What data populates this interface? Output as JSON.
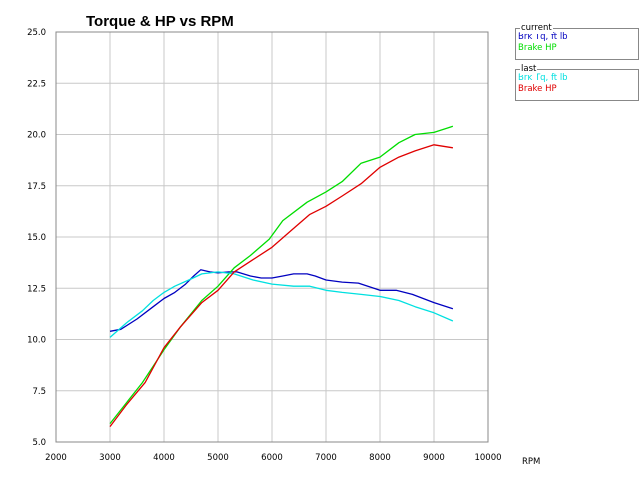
{
  "chart_data": {
    "type": "line",
    "title": "Torque & HP vs RPM",
    "xlabel": "RPM",
    "ylabel": "",
    "xlim": [
      2000,
      10000
    ],
    "ylim": [
      5.0,
      25.0
    ],
    "x_ticks": [
      "2000",
      "3000",
      "4000",
      "5000",
      "6000",
      "7000",
      "8000",
      "9000",
      "10000"
    ],
    "y_ticks": [
      "5.0",
      "7.5",
      "10.0",
      "12.5",
      "15.0",
      "17.5",
      "20.0",
      "22.5",
      "25.0"
    ],
    "grid": true,
    "legend_position": "top-right",
    "legend_groups": [
      {
        "label": "current",
        "entries": [
          {
            "name": "Brk Tq, ft lb",
            "color": "#0000c0"
          },
          {
            "name": "Brake HP",
            "color": "#00dd00"
          }
        ]
      },
      {
        "label": "last",
        "entries": [
          {
            "name": "Brk Tq, ft lb",
            "color": "#00e0e0"
          },
          {
            "name": "Brake HP",
            "color": "#e00000"
          }
        ]
      }
    ],
    "series": [
      {
        "group": "current",
        "name": "Brk Tq, ft lb",
        "color": "#0000c0",
        "points": [
          [
            3000,
            10.4
          ],
          [
            3200,
            10.5
          ],
          [
            3500,
            11.0
          ],
          [
            3800,
            11.6
          ],
          [
            4000,
            12.0
          ],
          [
            4200,
            12.3
          ],
          [
            4400,
            12.7
          ],
          [
            4550,
            13.1
          ],
          [
            4680,
            13.4
          ],
          [
            4850,
            13.3
          ],
          [
            5000,
            13.25
          ],
          [
            5200,
            13.3
          ],
          [
            5350,
            13.3
          ],
          [
            5600,
            13.1
          ],
          [
            5800,
            13.0
          ],
          [
            6000,
            13.0
          ],
          [
            6200,
            13.1
          ],
          [
            6400,
            13.2
          ],
          [
            6650,
            13.2
          ],
          [
            6800,
            13.1
          ],
          [
            7000,
            12.9
          ],
          [
            7300,
            12.8
          ],
          [
            7600,
            12.75
          ],
          [
            8000,
            12.4
          ],
          [
            8300,
            12.4
          ],
          [
            8600,
            12.2
          ],
          [
            9000,
            11.8
          ],
          [
            9350,
            11.5
          ]
        ]
      },
      {
        "group": "current",
        "name": "Brake HP",
        "color": "#00dd00",
        "points": [
          [
            3000,
            5.9
          ],
          [
            3300,
            6.9
          ],
          [
            3600,
            7.9
          ],
          [
            4000,
            9.5
          ],
          [
            4300,
            10.6
          ],
          [
            4700,
            11.9
          ],
          [
            5000,
            12.6
          ],
          [
            5300,
            13.5
          ],
          [
            5600,
            14.1
          ],
          [
            5950,
            14.9
          ],
          [
            6200,
            15.8
          ],
          [
            6650,
            16.7
          ],
          [
            7000,
            17.2
          ],
          [
            7300,
            17.7
          ],
          [
            7650,
            18.6
          ],
          [
            8000,
            18.9
          ],
          [
            8350,
            19.6
          ],
          [
            8650,
            20.0
          ],
          [
            9000,
            20.1
          ],
          [
            9350,
            20.4
          ]
        ]
      },
      {
        "group": "last",
        "name": "Brk Tq, ft lb",
        "color": "#00e0e0",
        "points": [
          [
            3000,
            10.1
          ],
          [
            3300,
            10.8
          ],
          [
            3600,
            11.4
          ],
          [
            3800,
            11.9
          ],
          [
            4000,
            12.3
          ],
          [
            4200,
            12.6
          ],
          [
            4500,
            12.95
          ],
          [
            4700,
            13.2
          ],
          [
            5000,
            13.3
          ],
          [
            5300,
            13.2
          ],
          [
            5650,
            12.9
          ],
          [
            6000,
            12.7
          ],
          [
            6400,
            12.6
          ],
          [
            6700,
            12.6
          ],
          [
            7000,
            12.4
          ],
          [
            7300,
            12.3
          ],
          [
            7650,
            12.2
          ],
          [
            8000,
            12.1
          ],
          [
            8350,
            11.9
          ],
          [
            8650,
            11.6
          ],
          [
            9000,
            11.3
          ],
          [
            9350,
            10.9
          ]
        ]
      },
      {
        "group": "last",
        "name": "Brake HP",
        "color": "#e00000",
        "points": [
          [
            3000,
            5.75
          ],
          [
            3300,
            6.8
          ],
          [
            3650,
            7.9
          ],
          [
            4000,
            9.6
          ],
          [
            4300,
            10.6
          ],
          [
            4700,
            11.8
          ],
          [
            5000,
            12.4
          ],
          [
            5300,
            13.3
          ],
          [
            5650,
            13.9
          ],
          [
            6000,
            14.5
          ],
          [
            6350,
            15.3
          ],
          [
            6700,
            16.1
          ],
          [
            7000,
            16.5
          ],
          [
            7300,
            17.0
          ],
          [
            7650,
            17.6
          ],
          [
            8000,
            18.4
          ],
          [
            8350,
            18.9
          ],
          [
            8650,
            19.2
          ],
          [
            9000,
            19.5
          ],
          [
            9350,
            19.35
          ]
        ]
      }
    ]
  }
}
